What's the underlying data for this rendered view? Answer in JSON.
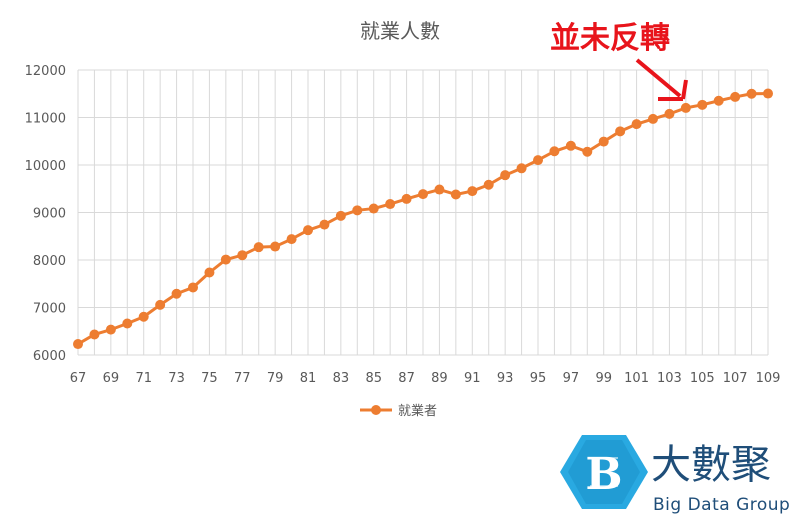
{
  "chart_data": {
    "type": "line",
    "title": "就業人數",
    "xlabel": "",
    "ylabel": "",
    "x": [
      67,
      68,
      69,
      70,
      71,
      72,
      73,
      74,
      75,
      76,
      77,
      78,
      79,
      80,
      81,
      82,
      83,
      84,
      85,
      86,
      87,
      88,
      89,
      90,
      91,
      92,
      93,
      94,
      95,
      96,
      97,
      98,
      99,
      100,
      101,
      102,
      103,
      104,
      105,
      106,
      107,
      108,
      109
    ],
    "x_tick_labels": [
      "67",
      "69",
      "71",
      "73",
      "75",
      "77",
      "79",
      "81",
      "83",
      "85",
      "87",
      "89",
      "91",
      "93",
      "95",
      "97",
      "99",
      "101",
      "103",
      "105",
      "107",
      "109"
    ],
    "ylim": [
      6000,
      12000
    ],
    "y_tick_labels": [
      "6000",
      "7000",
      "8000",
      "9000",
      "10000",
      "11000",
      "12000"
    ],
    "grid": true,
    "legend_position": "bottom",
    "series": [
      {
        "name": "就業者",
        "color": "#ed7d31",
        "values": [
          6231,
          6432,
          6534,
          6663,
          6805,
          7055,
          7290,
          7422,
          7737,
          8009,
          8101,
          8270,
          8283,
          8440,
          8628,
          8745,
          8930,
          9046,
          9083,
          9178,
          9286,
          9387,
          9483,
          9379,
          9451,
          9584,
          9786,
          9931,
          10103,
          10289,
          10404,
          10279,
          10493,
          10709,
          10860,
          10970,
          11076,
          11202,
          11267,
          11353,
          11433,
          11500,
          11504
        ]
      }
    ],
    "annotation": {
      "text": "並未反轉",
      "color": "#e8141b"
    }
  },
  "logo": {
    "name_cn": "大數聚",
    "name_en": "Big Data Group",
    "color": "#1f4e79",
    "accent": "#29a9e1"
  }
}
